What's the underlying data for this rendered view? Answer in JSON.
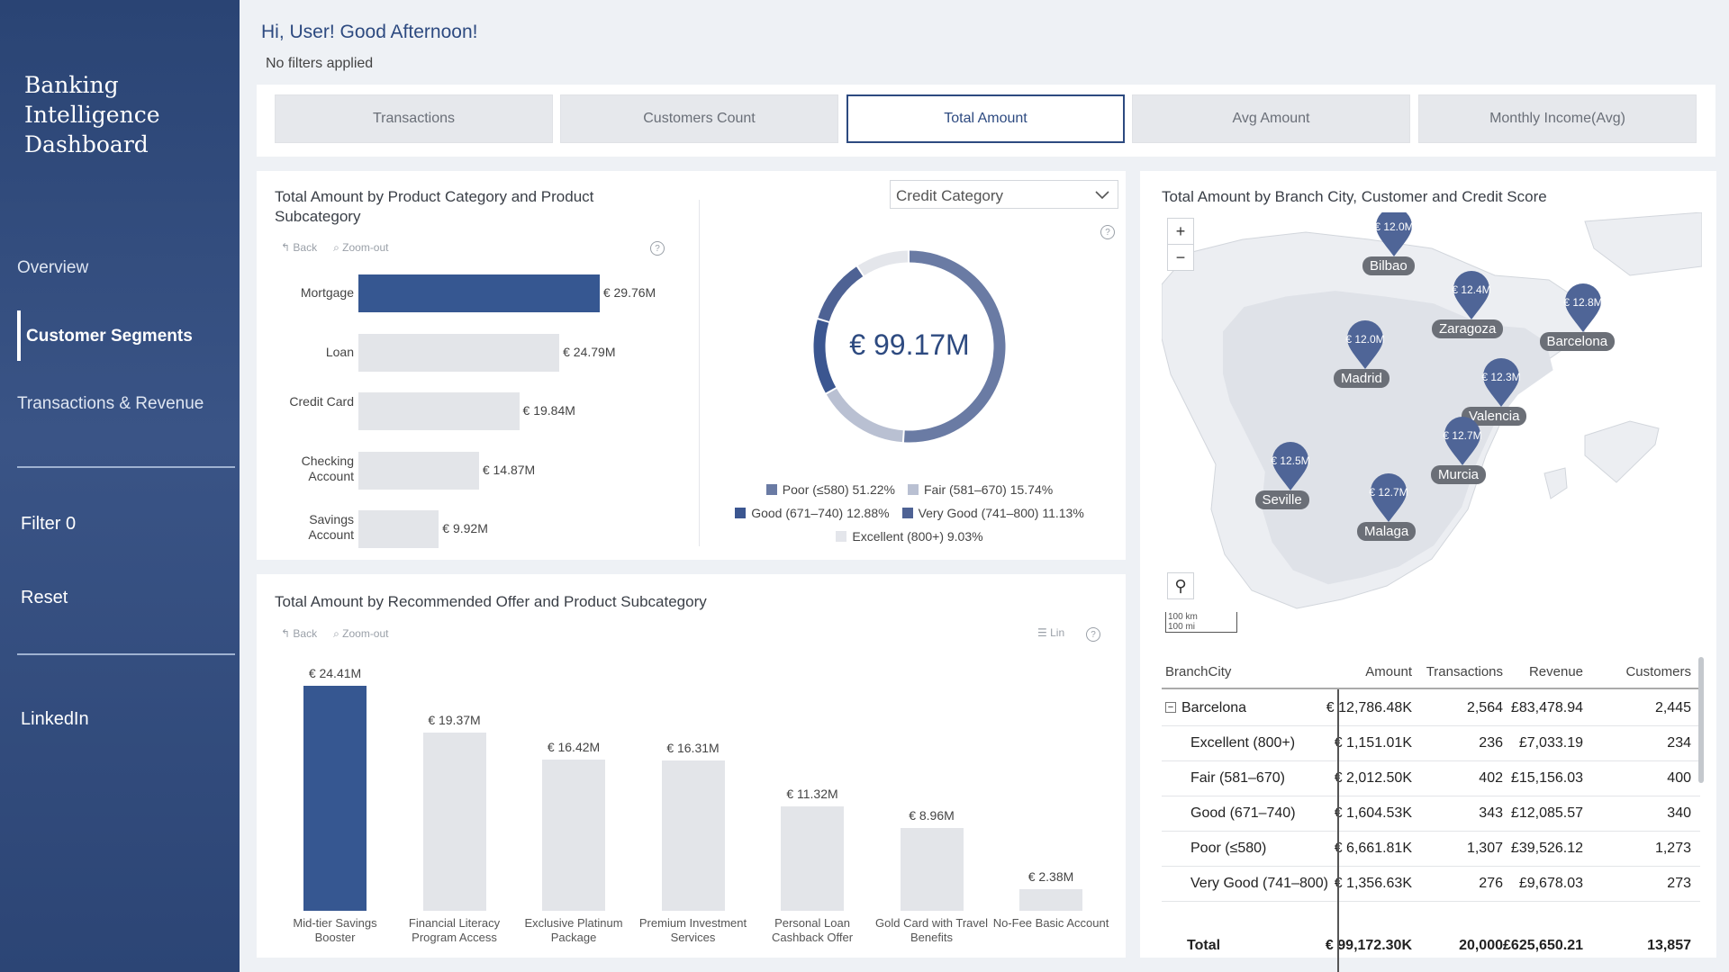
{
  "sidebar": {
    "brand": "Banking\nIntelligence\nDashboard",
    "nav": [
      "Overview",
      "Customer Segments",
      "Transactions & Revenue"
    ],
    "active_nav": "Customer Segments",
    "filter_label": "Filter 0",
    "reset_label": "Reset",
    "linkedin_label": "LinkedIn"
  },
  "header": {
    "greeting": "Hi, User! Good Afternoon!",
    "filters": "No filters applied"
  },
  "kpi_tabs": [
    "Transactions",
    "Customers Count",
    "Total Amount",
    "Avg Amount",
    "Monthly Income(Avg)"
  ],
  "kpi_selected": "Total Amount",
  "controls": {
    "back": "Back",
    "zoom_out": "Zoom-out",
    "lin": "Lin"
  },
  "product_chart": {
    "title": "Total Amount by Product Category and Product Subcategory"
  },
  "donut": {
    "dropdown": "Credit Category",
    "center_value": "€ 99.17M"
  },
  "offer_chart": {
    "title": "Total Amount by Recommended Offer and Product Subcategory"
  },
  "map": {
    "title": "Total Amount by Branch City, Customer and Credit Score",
    "zoom_in": "+",
    "zoom_out": "−",
    "scale_km": "100 km",
    "scale_mi": "100 mi",
    "pins": [
      {
        "city": "Bilbao",
        "value": "€ 12.0M"
      },
      {
        "city": "Zaragoza",
        "value": "€ 12.4M"
      },
      {
        "city": "Barcelona",
        "value": "€ 12.8M"
      },
      {
        "city": "Madrid",
        "value": "€ 12.0M"
      },
      {
        "city": "Valencia",
        "value": "€ 12.3M"
      },
      {
        "city": "Murcia",
        "value": "€ 12.7M"
      },
      {
        "city": "Seville",
        "value": "€ 12.5M"
      },
      {
        "city": "Malaga",
        "value": "€ 12.7M"
      }
    ]
  },
  "table": {
    "headers": [
      "BranchCity",
      "Amount",
      "Transactions",
      "Revenue",
      "Customers"
    ],
    "group": {
      "name": "Barcelona",
      "amount": "€ 12,786.48K",
      "transactions": "2,564",
      "revenue": "£83,478.94",
      "customers": "2,445"
    },
    "rows": [
      {
        "name": "Excellent (800+)",
        "amount": "€ 1,151.01K",
        "transactions": "236",
        "revenue": "£7,033.19",
        "customers": "234"
      },
      {
        "name": "Fair (581–670)",
        "amount": "€ 2,012.50K",
        "transactions": "402",
        "revenue": "£15,156.03",
        "customers": "400"
      },
      {
        "name": "Good (671–740)",
        "amount": "€ 1,604.53K",
        "transactions": "343",
        "revenue": "£12,085.57",
        "customers": "340"
      },
      {
        "name": "Poor (≤580)",
        "amount": "€ 6,661.81K",
        "transactions": "1,307",
        "revenue": "£39,526.12",
        "customers": "1,273"
      },
      {
        "name": "Very Good (741–800)",
        "amount": "€ 1,356.63K",
        "transactions": "276",
        "revenue": "£9,678.03",
        "customers": "273"
      }
    ],
    "total": {
      "name": "Total",
      "amount": "€ 99,172.30K",
      "transactions": "20,000",
      "revenue": "£625,650.21",
      "customers": "13,857"
    }
  },
  "colors": {
    "accent": "#365791",
    "bar_muted": "#e3e5e9",
    "donut_poor": "#6a7ba4"
  },
  "chart_data": [
    {
      "type": "bar",
      "orientation": "horizontal",
      "title": "Total Amount by Product Category and Product Subcategory",
      "categories": [
        "Mortgage",
        "Loan",
        "Credit Card",
        "Checking Account",
        "Savings Account"
      ],
      "values": [
        29.76,
        24.79,
        19.84,
        14.87,
        9.92
      ],
      "data_labels": [
        "€ 29.76M",
        "€ 24.79M",
        "€ 19.84M",
        "€ 14.87M",
        "€ 9.92M"
      ],
      "highlighted": "Mortgage"
    },
    {
      "type": "pie",
      "subtype": "donut",
      "center_label": "€ 99.17M",
      "categories": [
        "Poor (≤580)",
        "Fair (581–670)",
        "Good (671–740)",
        "Very Good (741–800)",
        "Excellent (800+)"
      ],
      "values": [
        51.22,
        15.74,
        12.88,
        11.13,
        9.03
      ],
      "legend_labels": [
        "Poor (≤580) 51.22%",
        "Fair (581–670) 15.74%",
        "Good (671–740) 12.88%",
        "Very Good (741–800) 11.13%",
        "Excellent (800+) 9.03%"
      ],
      "colors": [
        "#6a7ba4",
        "#b9c0d2",
        "#3b5690",
        "#4e6294",
        "#e4e6eb"
      ]
    },
    {
      "type": "bar",
      "orientation": "vertical",
      "title": "Total Amount by Recommended Offer and Product Subcategory",
      "categories": [
        "Mid-tier Savings Booster",
        "Financial Literacy Program Access",
        "Exclusive Platinum Package",
        "Premium Investment Services",
        "Personal Loan Cashback Offer",
        "Gold Card with Travel Benefits",
        "No-Fee Basic Account"
      ],
      "values": [
        24.41,
        19.37,
        16.42,
        16.31,
        11.32,
        8.96,
        2.38
      ],
      "data_labels": [
        "€ 24.41M",
        "€ 19.37M",
        "€ 16.42M",
        "€ 16.31M",
        "€ 11.32M",
        "€ 8.96M",
        "€ 2.38M"
      ],
      "highlighted": "Mid-tier Savings Booster"
    }
  ]
}
